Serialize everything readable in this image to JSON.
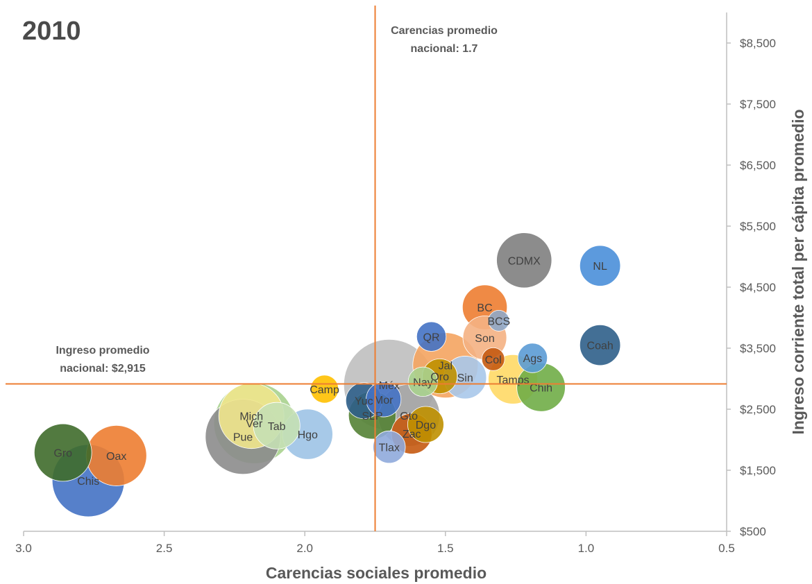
{
  "chart_data": {
    "type": "bubble",
    "year_label": "2010",
    "xlabel": "Carencias sociales promedio",
    "ylabel": "Ingreso corriente total per cápita promedio",
    "x_reversed": true,
    "xlim": [
      3.0,
      0.5
    ],
    "ylim": [
      500,
      9000
    ],
    "x_ticks": [
      3.0,
      2.5,
      2.0,
      1.5,
      1.0,
      0.5
    ],
    "x_tick_labels": [
      "3.0",
      "2.5",
      "2.0",
      "1.5",
      "1.0",
      "0.5"
    ],
    "y_ticks": [
      500,
      1500,
      2500,
      3500,
      4500,
      5500,
      6500,
      7500,
      8500
    ],
    "y_tick_labels": [
      "$500",
      "$1,500",
      "$2,500",
      "$3,500",
      "$4,500",
      "$5,500",
      "$6,500",
      "$7,500",
      "$8,500"
    ],
    "reference_lines": [
      {
        "axis": "x",
        "value": 1.75,
        "label_line1": "Carencias promedio",
        "label_line2": "nacional: 1.7"
      },
      {
        "axis": "y",
        "value": 2915,
        "label_line1": "Ingreso promedio",
        "label_line2": "nacional: $2,915"
      }
    ],
    "grid": false,
    "points": [
      {
        "label": "CDMX",
        "x": 1.22,
        "y": 4940,
        "size": 0.7,
        "color": "#7f7f7f"
      },
      {
        "label": "NL",
        "x": 0.95,
        "y": 4850,
        "size": 0.38,
        "color": "#4a8fd9"
      },
      {
        "label": "BC",
        "x": 1.36,
        "y": 4170,
        "size": 0.46,
        "color": "#ed7d31"
      },
      {
        "label": "BCS",
        "x": 1.31,
        "y": 3950,
        "size": 0.1,
        "color": "#8fa8c8"
      },
      {
        "label": "QR",
        "x": 1.55,
        "y": 3690,
        "size": 0.2,
        "color": "#4472c4"
      },
      {
        "label": "Son",
        "x": 1.36,
        "y": 3670,
        "size": 0.44,
        "color": "#f4b183"
      },
      {
        "label": "Coah",
        "x": 0.95,
        "y": 3550,
        "size": 0.38,
        "color": "#2f5f8a"
      },
      {
        "label": "Ags",
        "x": 1.19,
        "y": 3340,
        "size": 0.2,
        "color": "#5b9bd5"
      },
      {
        "label": "Col",
        "x": 1.33,
        "y": 3320,
        "size": 0.12,
        "color": "#c55a11"
      },
      {
        "label": "Jal",
        "x": 1.5,
        "y": 3220,
        "size": 0.98,
        "color": "#f4a460"
      },
      {
        "label": "Qro",
        "x": 1.52,
        "y": 3040,
        "size": 0.28,
        "color": "#bf9000"
      },
      {
        "label": "Sin",
        "x": 1.43,
        "y": 3020,
        "size": 0.42,
        "color": "#a9c8ea"
      },
      {
        "label": "Tamps",
        "x": 1.26,
        "y": 2990,
        "size": 0.56,
        "color": "#ffd966"
      },
      {
        "label": "Chih",
        "x": 1.16,
        "y": 2860,
        "size": 0.54,
        "color": "#70ad47"
      },
      {
        "label": "México",
        "x": 1.7,
        "y": 2900,
        "size": 1.9,
        "color": "#bfbfbf"
      },
      {
        "label": "Nay",
        "x": 1.58,
        "y": 2950,
        "size": 0.2,
        "color": "#a9d18e"
      },
      {
        "label": "Camp",
        "x": 1.93,
        "y": 2830,
        "size": 0.18,
        "color": "#ffc000"
      },
      {
        "label": "Mor",
        "x": 1.72,
        "y": 2660,
        "size": 0.28,
        "color": "#4472c4"
      },
      {
        "label": "Yuc",
        "x": 1.79,
        "y": 2640,
        "size": 0.3,
        "color": "#2f5f8a"
      },
      {
        "label": "Gto",
        "x": 1.63,
        "y": 2400,
        "size": 0.88,
        "color": "#a5a5a5"
      },
      {
        "label": "SLP",
        "x": 1.76,
        "y": 2400,
        "size": 0.52,
        "color": "#548235"
      },
      {
        "label": "Dgo",
        "x": 1.57,
        "y": 2250,
        "size": 0.3,
        "color": "#bf9000"
      },
      {
        "label": "Zac",
        "x": 1.62,
        "y": 2100,
        "size": 0.38,
        "color": "#c55a11"
      },
      {
        "label": "Tlax",
        "x": 1.7,
        "y": 1880,
        "size": 0.24,
        "color": "#8faadc"
      },
      {
        "label": "Hgo",
        "x": 1.99,
        "y": 2090,
        "size": 0.58,
        "color": "#9dc3e6"
      },
      {
        "label": "Tab",
        "x": 2.1,
        "y": 2230,
        "size": 0.5,
        "color": "#c5e0b4"
      },
      {
        "label": "Mich",
        "x": 2.19,
        "y": 2390,
        "size": 0.98,
        "color": "#f0e68c"
      },
      {
        "label": "Ver",
        "x": 2.18,
        "y": 2270,
        "size": 1.5,
        "color": "#a9d18e"
      },
      {
        "label": "Pue",
        "x": 2.22,
        "y": 2050,
        "size": 1.3,
        "color": "#8c8c8c"
      },
      {
        "label": "Gro",
        "x": 2.86,
        "y": 1790,
        "size": 0.76,
        "color": "#3f6b2b"
      },
      {
        "label": "Oax",
        "x": 2.67,
        "y": 1740,
        "size": 0.84,
        "color": "#ed7d31"
      },
      {
        "label": "Chis",
        "x": 2.77,
        "y": 1330,
        "size": 1.2,
        "color": "#4472c4"
      }
    ]
  }
}
